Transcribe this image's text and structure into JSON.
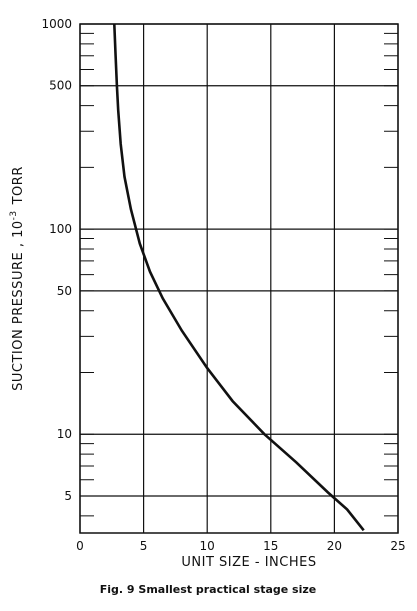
{
  "chart_data": {
    "type": "line",
    "caption": "Fig. 9   Smallest practical stage size",
    "xlabel": "UNIT SIZE - INCHES",
    "ylabel_main": "SUCTION PRESSURE , 10",
    "ylabel_exp": "-3",
    "ylabel_unit": "TORR",
    "xlim": [
      0,
      25
    ],
    "ylim": [
      3.3,
      1000
    ],
    "yscale": "log",
    "grid": true,
    "x_ticks": [
      {
        "value": 0,
        "label": "0"
      },
      {
        "value": 5,
        "label": "5"
      },
      {
        "value": 10,
        "label": "10"
      },
      {
        "value": 15,
        "label": "15"
      },
      {
        "value": 20,
        "label": "20"
      },
      {
        "value": 25,
        "label": "25"
      }
    ],
    "y_ticks": [
      {
        "value": 5,
        "label": "5"
      },
      {
        "value": 10,
        "label": "10"
      },
      {
        "value": 50,
        "label": "50"
      },
      {
        "value": 100,
        "label": "100"
      },
      {
        "value": 500,
        "label": "500"
      },
      {
        "value": 1000,
        "label": "1000"
      }
    ],
    "series": [
      {
        "x": [
          2.7,
          2.8,
          2.9,
          3.0,
          3.2,
          3.5,
          4.0,
          4.7,
          5.5,
          6.5,
          8.0,
          10.0,
          12.0,
          14.5,
          17.0,
          19.5,
          21.0,
          22.3
        ],
        "y": [
          1000,
          700,
          500,
          380,
          260,
          180,
          125,
          85,
          62,
          46,
          32,
          21,
          14.5,
          10,
          7.3,
          5.2,
          4.3,
          3.4
        ]
      }
    ]
  }
}
